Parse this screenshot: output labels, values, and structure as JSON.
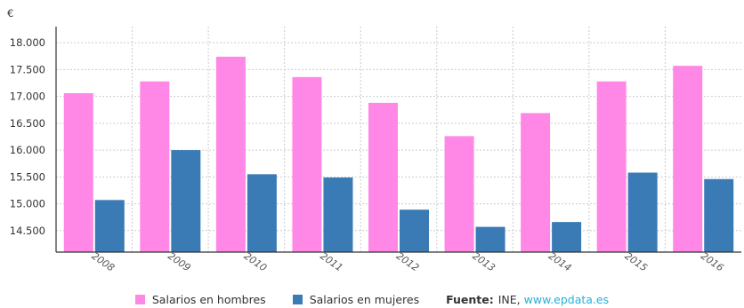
{
  "chart_data": {
    "type": "bar",
    "unit_label": "€",
    "categories": [
      "2008",
      "2009",
      "2010",
      "2011",
      "2012",
      "2013",
      "2014",
      "2015",
      "2016"
    ],
    "series": [
      {
        "name": "Salarios en hombres",
        "color": "#ff88e6",
        "values": [
          17060,
          17280,
          17740,
          17360,
          16880,
          16260,
          16690,
          17280,
          17570
        ]
      },
      {
        "name": "Salarios en mujeres",
        "color": "#3a7ab5",
        "values": [
          15070,
          16000,
          15550,
          15490,
          14890,
          14570,
          14660,
          15580,
          15460
        ]
      }
    ],
    "ylim": [
      14100,
      18300
    ],
    "yticks": [
      14500,
      15000,
      15500,
      16000,
      16500,
      17000,
      17500,
      18000
    ],
    "ytick_labels": [
      "14.500",
      "15.000",
      "15.500",
      "16.000",
      "16.500",
      "17.000",
      "17.500",
      "18.000"
    ],
    "grid": true,
    "legend_position": "bottom"
  },
  "source": {
    "label": "Fuente:",
    "name": "INE,",
    "link": "www.epdata.es"
  }
}
